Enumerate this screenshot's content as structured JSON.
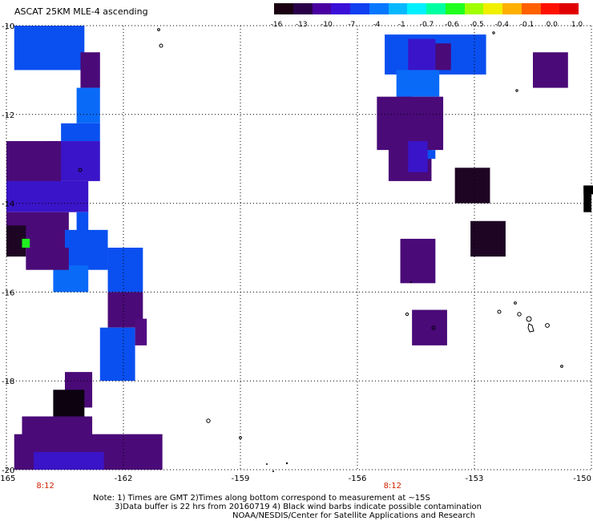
{
  "title": "ASCAT 25KM MLE-4 ascending",
  "colorbar": {
    "colors": [
      "#1a0010",
      "#2a0048",
      "#4a00a0",
      "#3a10d8",
      "#1040f0",
      "#0878ff",
      "#08b8ff",
      "#00f0ff",
      "#00ffa0",
      "#20ff20",
      "#a0ff00",
      "#f0f000",
      "#ffb000",
      "#ff6000",
      "#ff1000",
      "#e00000"
    ],
    "ticks": [
      "-16",
      "-13",
      "-10",
      "-7",
      "-4",
      "-1",
      "-0.7",
      "-0.6",
      "-0.5",
      "-0.4",
      "-0.1",
      "0.0",
      "1.0"
    ]
  },
  "axes": {
    "lat_labels": [
      "-10",
      "-12",
      "-14",
      "-16",
      "-18",
      "-20"
    ],
    "lon_labels": [
      "-165",
      "-162",
      "-159",
      "-156",
      "-153",
      "-150"
    ],
    "time_labels": [
      "8:12",
      "8:12"
    ]
  },
  "map_data": {
    "type": "heatmap",
    "lon_range": [
      -165,
      -150
    ],
    "lat_range": [
      -20,
      -10
    ],
    "cell_colors": {
      "violet": "#4a0a78",
      "violet2": "#520c82",
      "indigo": "#3a14c8",
      "blue": "#0a50f0",
      "blue2": "#0a6af8",
      "dark": "#1e0524",
      "darker": "#0c0210",
      "green": "#20f020",
      "black": "#000000"
    },
    "patches": [
      {
        "lon0": -164.8,
        "lon1": -163.0,
        "lat0": -11.0,
        "lat1": -10.0,
        "color": "blue"
      },
      {
        "lon0": -163.1,
        "lon1": -162.6,
        "lat0": -11.4,
        "lat1": -10.6,
        "color": "violet"
      },
      {
        "lon0": -163.2,
        "lon1": -162.6,
        "lat0": -12.2,
        "lat1": -11.4,
        "color": "blue2"
      },
      {
        "lon0": -163.6,
        "lon1": -162.6,
        "lat0": -12.6,
        "lat1": -12.2,
        "color": "blue"
      },
      {
        "lon0": -164.0,
        "lon1": -162.6,
        "lat0": -13.5,
        "lat1": -12.6,
        "color": "indigo"
      },
      {
        "lon0": -165.0,
        "lon1": -163.6,
        "lat0": -13.8,
        "lat1": -12.6,
        "color": "violet"
      },
      {
        "lon0": -165.0,
        "lon1": -162.9,
        "lat0": -14.2,
        "lat1": -13.5,
        "color": "indigo"
      },
      {
        "lon0": -163.2,
        "lon1": -162.9,
        "lat0": -15.0,
        "lat1": -14.2,
        "color": "blue"
      },
      {
        "lon0": -165.0,
        "lon1": -163.4,
        "lat0": -15.0,
        "lat1": -14.2,
        "color": "violet"
      },
      {
        "lon0": -165.0,
        "lon1": -164.5,
        "lat0": -15.2,
        "lat1": -14.5,
        "color": "dark"
      },
      {
        "lon0": -164.6,
        "lon1": -164.4,
        "lat0": -15.0,
        "lat1": -14.8,
        "color": "green"
      },
      {
        "lon0": -163.5,
        "lon1": -162.4,
        "lat0": -15.5,
        "lat1": -14.6,
        "color": "blue"
      },
      {
        "lon0": -163.8,
        "lon1": -162.9,
        "lat0": -16.0,
        "lat1": -15.4,
        "color": "blue2"
      },
      {
        "lon0": -164.5,
        "lon1": -163.4,
        "lat0": -15.5,
        "lat1": -15.0,
        "color": "violet"
      },
      {
        "lon0": -162.4,
        "lon1": -161.5,
        "lat0": -16.0,
        "lat1": -15.0,
        "color": "blue"
      },
      {
        "lon0": -162.4,
        "lon1": -161.5,
        "lat0": -16.8,
        "lat1": -16.0,
        "color": "violet"
      },
      {
        "lon0": -162.6,
        "lon1": -161.7,
        "lat0": -18.0,
        "lat1": -16.8,
        "color": "blue"
      },
      {
        "lon0": -161.7,
        "lon1": -161.4,
        "lat0": -17.2,
        "lat1": -16.6,
        "color": "violet2"
      },
      {
        "lon0": -163.5,
        "lon1": -162.8,
        "lat0": -18.6,
        "lat1": -17.8,
        "color": "violet"
      },
      {
        "lon0": -163.8,
        "lon1": -163.0,
        "lat0": -18.9,
        "lat1": -18.2,
        "color": "darker"
      },
      {
        "lon0": -164.6,
        "lon1": -162.8,
        "lat0": -19.5,
        "lat1": -18.8,
        "color": "violet"
      },
      {
        "lon0": -164.8,
        "lon1": -161.0,
        "lat0": -20.0,
        "lat1": -19.2,
        "color": "violet"
      },
      {
        "lon0": -164.3,
        "lon1": -162.5,
        "lat0": -20.0,
        "lat1": -19.6,
        "color": "indigo"
      },
      {
        "lon0": -155.3,
        "lon1": -152.7,
        "lat0": -11.1,
        "lat1": -10.2,
        "color": "blue"
      },
      {
        "lon0": -154.7,
        "lon1": -154.0,
        "lat0": -11.3,
        "lat1": -10.3,
        "color": "indigo"
      },
      {
        "lon0": -154.0,
        "lon1": -153.6,
        "lat0": -11.0,
        "lat1": -10.4,
        "color": "violet"
      },
      {
        "lon0": -155.0,
        "lon1": -153.9,
        "lat0": -11.6,
        "lat1": -11.0,
        "color": "blue2"
      },
      {
        "lon0": -155.0,
        "lon1": -154.6,
        "lat0": -12.2,
        "lat1": -11.6,
        "color": "indigo"
      },
      {
        "lon0": -155.5,
        "lon1": -153.8,
        "lat0": -12.8,
        "lat1": -11.6,
        "color": "violet"
      },
      {
        "lon0": -155.2,
        "lon1": -154.1,
        "lat0": -13.5,
        "lat1": -12.6,
        "color": "violet"
      },
      {
        "lon0": -154.7,
        "lon1": -154.2,
        "lat0": -13.3,
        "lat1": -12.6,
        "color": "indigo"
      },
      {
        "lon0": -154.2,
        "lon1": -154.0,
        "lat0": -13.0,
        "lat1": -12.8,
        "color": "blue"
      },
      {
        "lon0": -151.5,
        "lon1": -150.6,
        "lat0": -11.4,
        "lat1": -10.6,
        "color": "violet"
      },
      {
        "lon0": -153.5,
        "lon1": -152.6,
        "lat0": -14.0,
        "lat1": -13.2,
        "color": "dark"
      },
      {
        "lon0": -153.1,
        "lon1": -152.2,
        "lat0": -15.2,
        "lat1": -14.4,
        "color": "dark"
      },
      {
        "lon0": -154.9,
        "lon1": -154.0,
        "lat0": -15.8,
        "lat1": -14.8,
        "color": "violet"
      },
      {
        "lon0": -154.6,
        "lon1": -153.7,
        "lat0": -17.2,
        "lat1": -16.4,
        "color": "violet"
      },
      {
        "lon0": -150.2,
        "lon1": -149.6,
        "lat0": -13.8,
        "lat1": -13.6,
        "color": "black"
      },
      {
        "lon0": -150.2,
        "lon1": -150.0,
        "lat0": -14.2,
        "lat1": -13.6,
        "color": "black"
      }
    ]
  },
  "footer": {
    "line1": "Note: 1) Times are GMT 2)Times along bottom correspond to measurement at ~15S",
    "line2": "3)Data buffer is 22 hrs from 20160719 4) Black wind barbs indicate possible contamination",
    "line3": "NOAA/NESDIS/Center for Satellite Applications and Research"
  }
}
